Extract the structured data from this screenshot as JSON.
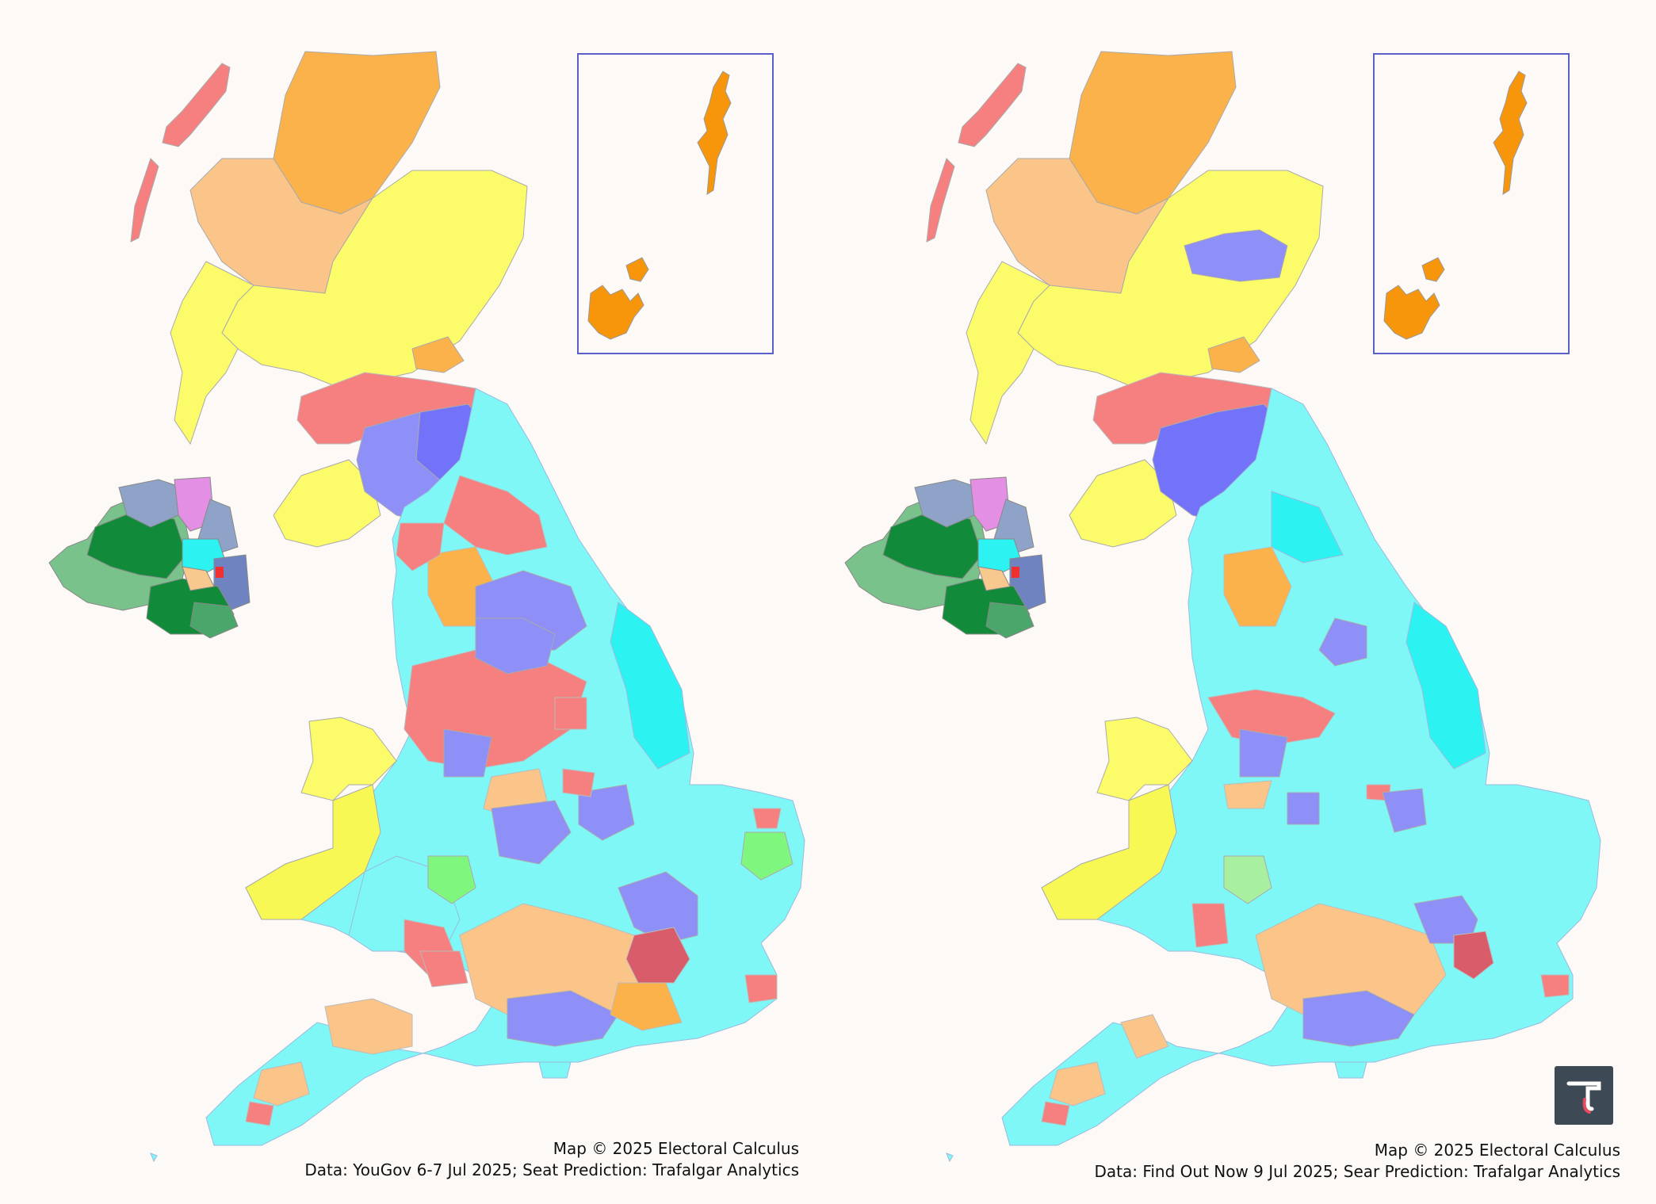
{
  "maps": [
    {
      "id": "yougov",
      "credit_line1": "Map © 2025 Electoral Calculus",
      "credit_line2": "Data: YouGov 6-7 Jul 2025; Seat Prediction: Trafalgar Analytics"
    },
    {
      "id": "findoutnow",
      "credit_line1": "Map © 2025 Electoral Calculus",
      "credit_line2": "Data: Find Out Now 9 Jul 2025; Sear Prediction: Trafalgar Analytics"
    }
  ],
  "party_colors": {
    "reform": "#7ff7f7",
    "reform_strong": "#2df2f2",
    "conservative": "#8f8ff8",
    "labour": "#f67f7f",
    "libdem": "#fbc58a",
    "snp": "#fcfc6a",
    "green": "#7ff77f",
    "plaid": "#f8f855",
    "highland": "#fbb24a",
    "orkney": "#f7960b",
    "ni_sinn_fein": "#118b3a",
    "ni_dup": "#e38fe3",
    "ni_alliance": "#f7c98f",
    "ni_sdlp": "#79c28c",
    "ni_uup": "#8fa3c8"
  },
  "logo": {
    "glyph": "τ",
    "icon": "trafalgar-analytics-logo-icon"
  }
}
